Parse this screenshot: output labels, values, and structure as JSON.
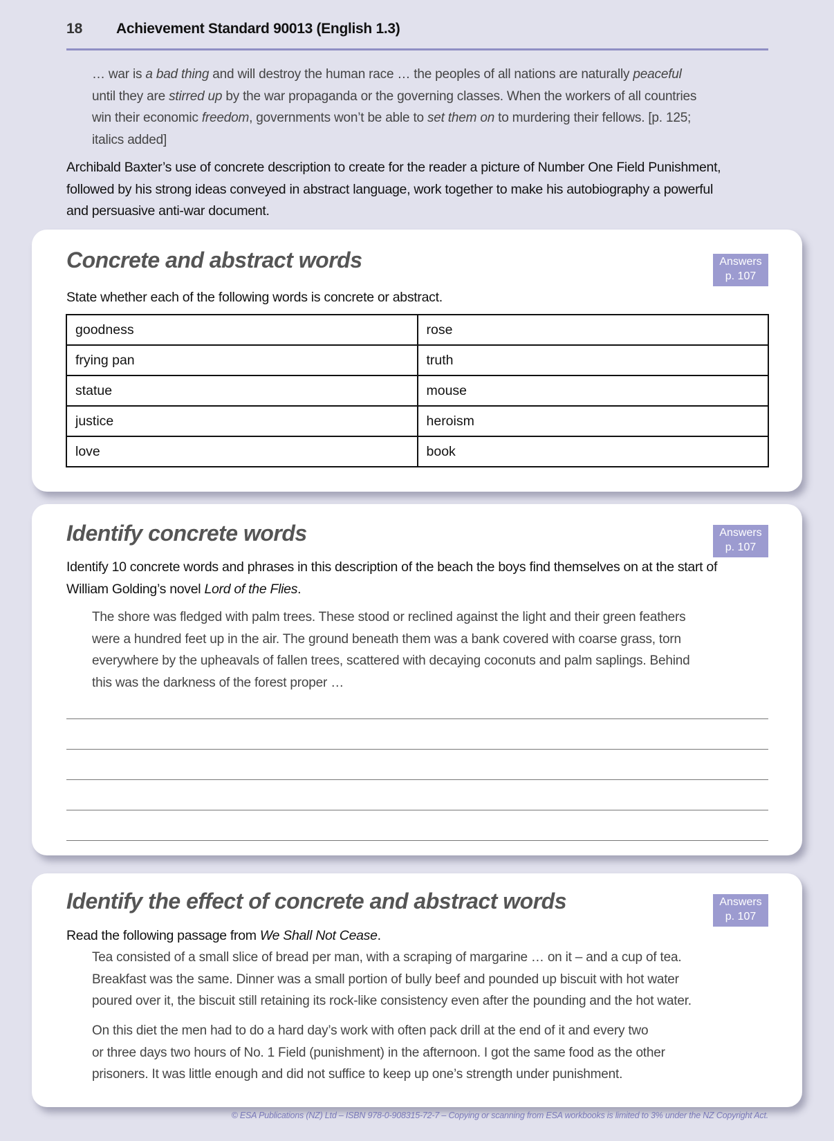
{
  "header": {
    "page_number": "18",
    "title": "Achievement Standard 90013 (English 1.3)"
  },
  "intro_quote": [
    [
      {
        "t": "… war is "
      },
      {
        "t": "a bad thing",
        "i": true
      },
      {
        "t": " and will destroy the human race … the peoples of all nations are naturally "
      },
      {
        "t": "peaceful",
        "i": true
      }
    ],
    [
      {
        "t": "until they are "
      },
      {
        "t": "stirred up",
        "i": true
      },
      {
        "t": " by the war propaganda or the governing classes. When the workers of all countries"
      }
    ],
    [
      {
        "t": "win their economic "
      },
      {
        "t": "freedom",
        "i": true
      },
      {
        "t": ", governments won’t be able to "
      },
      {
        "t": "set them on",
        "i": true
      },
      {
        "t": " to murdering their fellows. [p. 125;"
      }
    ],
    [
      {
        "t": "italics added]"
      }
    ]
  ],
  "intro_paragraph": [
    [
      {
        "t": "Archibald Baxter’s use of concrete description to create for the reader a picture of Number One Field Punishment,"
      }
    ],
    [
      {
        "t": "followed by his strong ideas conveyed in abstract language, work together to make his autobiography a powerful"
      }
    ],
    [
      {
        "t": "and persuasive anti-war document."
      }
    ]
  ],
  "card1": {
    "title": "Concrete and abstract words",
    "badge": [
      "Answers",
      "p. 107"
    ],
    "instruction": "State whether each of the following words is concrete or abstract.",
    "rows": [
      [
        "goodness",
        "rose"
      ],
      [
        "frying pan",
        "truth"
      ],
      [
        "statue",
        "mouse"
      ],
      [
        "justice",
        "heroism"
      ],
      [
        "love",
        "book"
      ]
    ]
  },
  "card2": {
    "title": "Identify concrete words",
    "badge": [
      "Answers",
      "p. 107"
    ],
    "instruction": [
      [
        {
          "t": "Identify 10 concrete words and phrases in this description of the beach the boys find themselves on at the start of"
        }
      ],
      [
        {
          "t": "William Golding’s novel "
        },
        {
          "t": "Lord of the Flies",
          "i": true
        },
        {
          "t": "."
        }
      ]
    ],
    "passage": [
      [
        {
          "t": "The shore was fledged with palm trees. These stood or reclined against the light and their green feathers"
        }
      ],
      [
        {
          "t": "were a hundred feet up in the air. The ground beneath them was a bank covered with coarse grass, torn"
        }
      ],
      [
        {
          "t": "everywhere by the upheavals of fallen trees, scattered with decaying coconuts and palm saplings. Behind"
        }
      ],
      [
        {
          "t": "this was the darkness of the forest proper …"
        }
      ]
    ],
    "answer_lines": 5
  },
  "card3": {
    "title": "Identify the effect of concrete and abstract words",
    "badge": [
      "Answers",
      "p. 107"
    ],
    "instruction": [
      [
        {
          "t": "Read the following passage from "
        },
        {
          "t": "We Shall Not Cease",
          "i": true
        },
        {
          "t": "."
        }
      ]
    ],
    "passage1": [
      [
        {
          "t": "Tea consisted of a small slice of bread per man, with a scraping of margarine … on it – and a cup of tea."
        }
      ],
      [
        {
          "t": "Breakfast was the same. Dinner was a small portion of bully beef and pounded up biscuit with hot water"
        }
      ],
      [
        {
          "t": "poured over it, the biscuit still retaining its rock-like consistency even after the pounding and the hot water."
        }
      ]
    ],
    "passage2": [
      [
        {
          "t": "On this diet the men had to do a hard day’s work with often pack drill at the end of it and every two"
        }
      ],
      [
        {
          "t": "or three days two hours of No. 1 Field (punishment) in the afternoon. I got the same food as the other"
        }
      ],
      [
        {
          "t": "prisoners. It was little enough and did not suffice to keep up one’s strength under punishment."
        }
      ]
    ]
  },
  "footer": "© ESA Publications (NZ) Ltd  –  ISBN 978-0-908315-72-7  –  Copying or scanning from ESA workbooks is limited to 3% under the NZ Copyright Act.",
  "colors": {
    "background": "#e1e1ed",
    "accent": "#9c9bd0",
    "rule": "#8f8ec4",
    "footer": "#7a79b8"
  }
}
